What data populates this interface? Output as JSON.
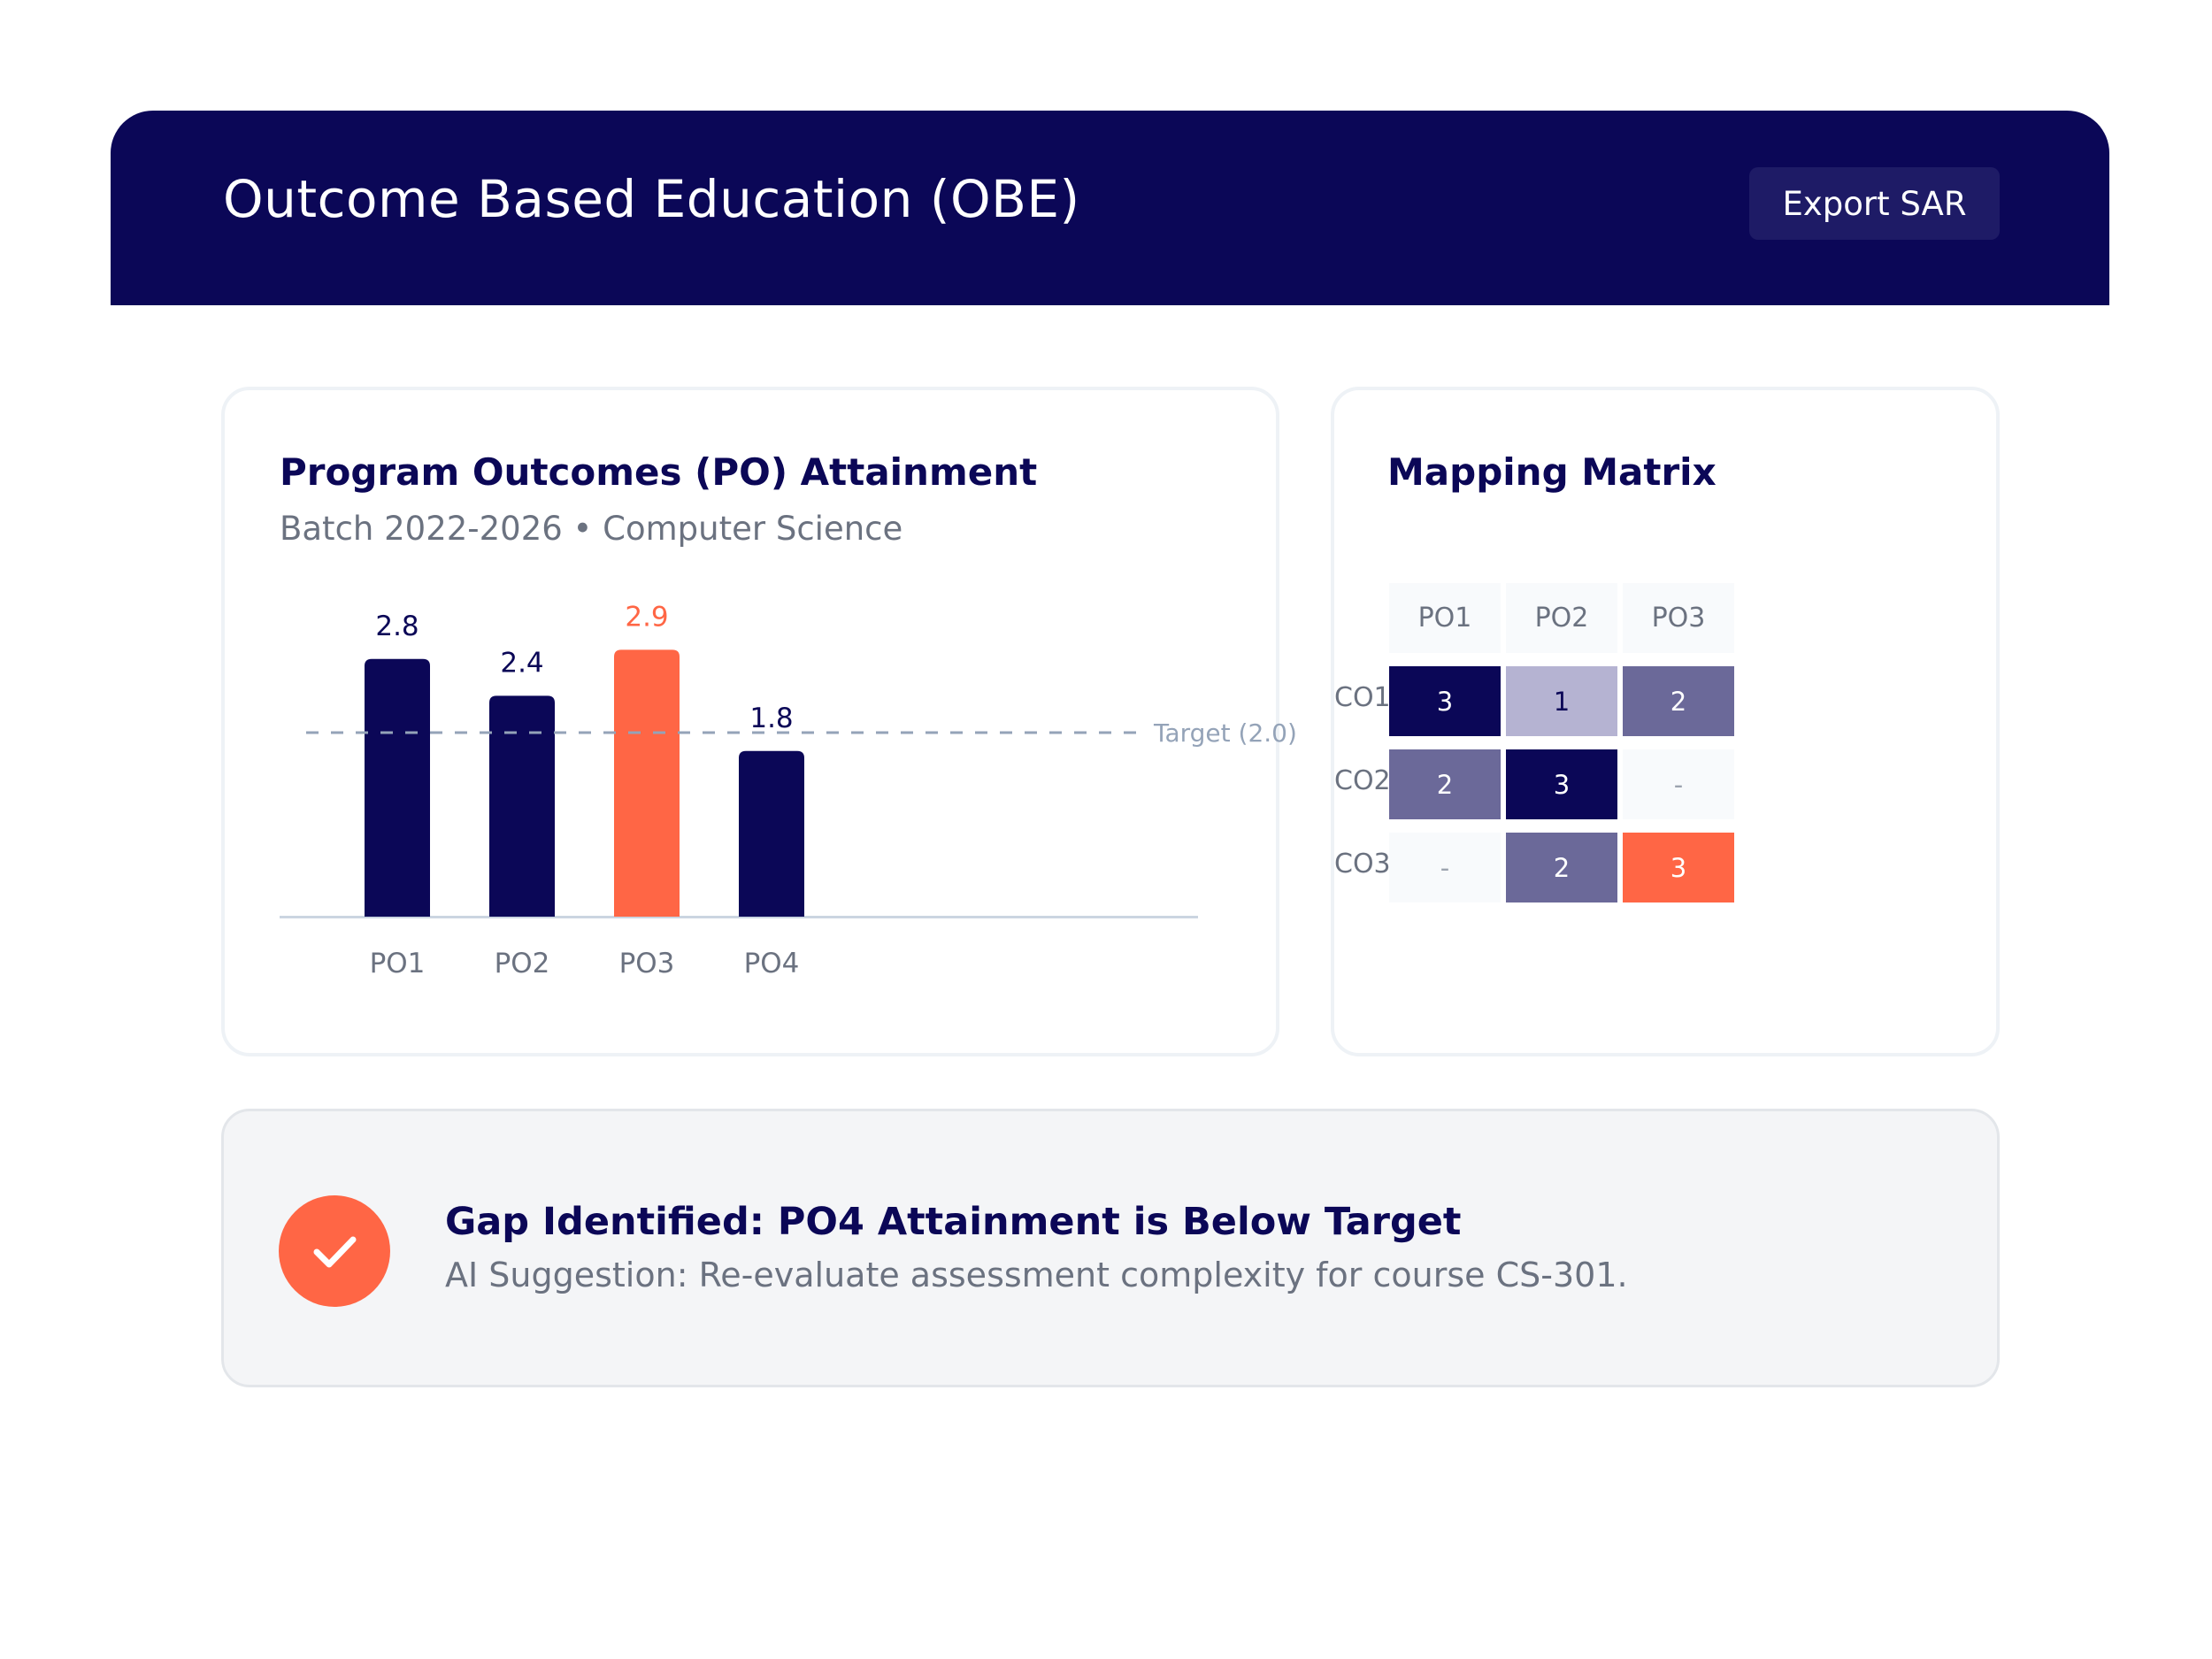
{
  "header": {
    "title": "Outcome Based Education (OBE)",
    "export_label": "Export SAR"
  },
  "po_card": {
    "title": "Program Outcomes (PO) Attainment",
    "subtitle": "Batch 2022-2026 • Computer Science",
    "target_label": "Target (2.0)"
  },
  "chart_data": {
    "type": "bar",
    "categories": [
      "PO1",
      "PO2",
      "PO3",
      "PO4"
    ],
    "values": [
      2.8,
      2.4,
      2.9,
      1.8
    ],
    "value_labels": [
      "2.8",
      "2.4",
      "2.9",
      "1.8"
    ],
    "highlight_index": 2,
    "target": 2.0,
    "ylim": [
      0,
      3.0
    ],
    "grid": false,
    "title": "Program Outcomes (PO) Attainment",
    "xlabel": "",
    "ylabel": "",
    "colors": {
      "bar": "#0b0757",
      "highlight": "#ff6645",
      "target_line": "#94a3b8",
      "baseline": "#cbd5e1"
    }
  },
  "matrix_card": {
    "title": "Mapping Matrix",
    "columns": [
      "PO1",
      "PO2",
      "PO3"
    ],
    "rows": [
      {
        "label": "CO1",
        "cells": [
          "3",
          "1",
          "2"
        ]
      },
      {
        "label": "CO2",
        "cells": [
          "2",
          "3",
          "-"
        ]
      },
      {
        "label": "CO3",
        "cells": [
          "-",
          "2",
          "3"
        ]
      }
    ],
    "colors": {
      "level_3": "#0b0757",
      "level_2": "#6b6999",
      "level_1": "#b5b3d2",
      "empty": "#f8fafc",
      "highlight": "#ff6645"
    },
    "highlight_cell": "CO3-PO3"
  },
  "alert": {
    "title": "Gap Identified: PO4 Attainment is Below Target",
    "body": "AI Suggestion: Re-evaluate assessment complexity for course CS-301.",
    "icon": "check-icon",
    "icon_color": "#ff6645"
  }
}
